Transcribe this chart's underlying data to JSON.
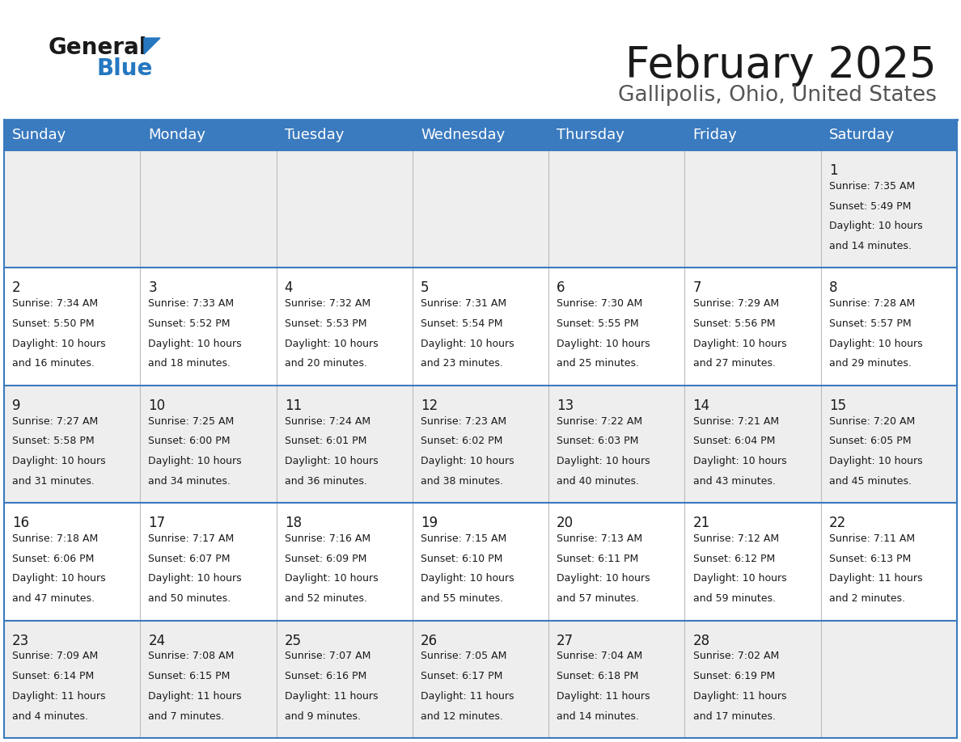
{
  "title": "February 2025",
  "subtitle": "Gallipolis, Ohio, United States",
  "header_bg": "#3a7abf",
  "header_text_color": "#ffffff",
  "cell_bg_week1": "#eeeeee",
  "cell_bg_week2": "#ffffff",
  "cell_bg_week3": "#eeeeee",
  "cell_bg_week4": "#ffffff",
  "cell_bg_week5": "#eeeeee",
  "border_color": "#3a7abf",
  "sep_color": "#bbbbbb",
  "day_headers": [
    "Sunday",
    "Monday",
    "Tuesday",
    "Wednesday",
    "Thursday",
    "Friday",
    "Saturday"
  ],
  "calendar_data": [
    [
      null,
      null,
      null,
      null,
      null,
      null,
      {
        "day": "1",
        "sunrise": "7:35 AM",
        "sunset": "5:49 PM",
        "daylight1": "Daylight: 10 hours",
        "daylight2": "and 14 minutes."
      }
    ],
    [
      {
        "day": "2",
        "sunrise": "7:34 AM",
        "sunset": "5:50 PM",
        "daylight1": "Daylight: 10 hours",
        "daylight2": "and 16 minutes."
      },
      {
        "day": "3",
        "sunrise": "7:33 AM",
        "sunset": "5:52 PM",
        "daylight1": "Daylight: 10 hours",
        "daylight2": "and 18 minutes."
      },
      {
        "day": "4",
        "sunrise": "7:32 AM",
        "sunset": "5:53 PM",
        "daylight1": "Daylight: 10 hours",
        "daylight2": "and 20 minutes."
      },
      {
        "day": "5",
        "sunrise": "7:31 AM",
        "sunset": "5:54 PM",
        "daylight1": "Daylight: 10 hours",
        "daylight2": "and 23 minutes."
      },
      {
        "day": "6",
        "sunrise": "7:30 AM",
        "sunset": "5:55 PM",
        "daylight1": "Daylight: 10 hours",
        "daylight2": "and 25 minutes."
      },
      {
        "day": "7",
        "sunrise": "7:29 AM",
        "sunset": "5:56 PM",
        "daylight1": "Daylight: 10 hours",
        "daylight2": "and 27 minutes."
      },
      {
        "day": "8",
        "sunrise": "7:28 AM",
        "sunset": "5:57 PM",
        "daylight1": "Daylight: 10 hours",
        "daylight2": "and 29 minutes."
      }
    ],
    [
      {
        "day": "9",
        "sunrise": "7:27 AM",
        "sunset": "5:58 PM",
        "daylight1": "Daylight: 10 hours",
        "daylight2": "and 31 minutes."
      },
      {
        "day": "10",
        "sunrise": "7:25 AM",
        "sunset": "6:00 PM",
        "daylight1": "Daylight: 10 hours",
        "daylight2": "and 34 minutes."
      },
      {
        "day": "11",
        "sunrise": "7:24 AM",
        "sunset": "6:01 PM",
        "daylight1": "Daylight: 10 hours",
        "daylight2": "and 36 minutes."
      },
      {
        "day": "12",
        "sunrise": "7:23 AM",
        "sunset": "6:02 PM",
        "daylight1": "Daylight: 10 hours",
        "daylight2": "and 38 minutes."
      },
      {
        "day": "13",
        "sunrise": "7:22 AM",
        "sunset": "6:03 PM",
        "daylight1": "Daylight: 10 hours",
        "daylight2": "and 40 minutes."
      },
      {
        "day": "14",
        "sunrise": "7:21 AM",
        "sunset": "6:04 PM",
        "daylight1": "Daylight: 10 hours",
        "daylight2": "and 43 minutes."
      },
      {
        "day": "15",
        "sunrise": "7:20 AM",
        "sunset": "6:05 PM",
        "daylight1": "Daylight: 10 hours",
        "daylight2": "and 45 minutes."
      }
    ],
    [
      {
        "day": "16",
        "sunrise": "7:18 AM",
        "sunset": "6:06 PM",
        "daylight1": "Daylight: 10 hours",
        "daylight2": "and 47 minutes."
      },
      {
        "day": "17",
        "sunrise": "7:17 AM",
        "sunset": "6:07 PM",
        "daylight1": "Daylight: 10 hours",
        "daylight2": "and 50 minutes."
      },
      {
        "day": "18",
        "sunrise": "7:16 AM",
        "sunset": "6:09 PM",
        "daylight1": "Daylight: 10 hours",
        "daylight2": "and 52 minutes."
      },
      {
        "day": "19",
        "sunrise": "7:15 AM",
        "sunset": "6:10 PM",
        "daylight1": "Daylight: 10 hours",
        "daylight2": "and 55 minutes."
      },
      {
        "day": "20",
        "sunrise": "7:13 AM",
        "sunset": "6:11 PM",
        "daylight1": "Daylight: 10 hours",
        "daylight2": "and 57 minutes."
      },
      {
        "day": "21",
        "sunrise": "7:12 AM",
        "sunset": "6:12 PM",
        "daylight1": "Daylight: 10 hours",
        "daylight2": "and 59 minutes."
      },
      {
        "day": "22",
        "sunrise": "7:11 AM",
        "sunset": "6:13 PM",
        "daylight1": "Daylight: 11 hours",
        "daylight2": "and 2 minutes."
      }
    ],
    [
      {
        "day": "23",
        "sunrise": "7:09 AM",
        "sunset": "6:14 PM",
        "daylight1": "Daylight: 11 hours",
        "daylight2": "and 4 minutes."
      },
      {
        "day": "24",
        "sunrise": "7:08 AM",
        "sunset": "6:15 PM",
        "daylight1": "Daylight: 11 hours",
        "daylight2": "and 7 minutes."
      },
      {
        "day": "25",
        "sunrise": "7:07 AM",
        "sunset": "6:16 PM",
        "daylight1": "Daylight: 11 hours",
        "daylight2": "and 9 minutes."
      },
      {
        "day": "26",
        "sunrise": "7:05 AM",
        "sunset": "6:17 PM",
        "daylight1": "Daylight: 11 hours",
        "daylight2": "and 12 minutes."
      },
      {
        "day": "27",
        "sunrise": "7:04 AM",
        "sunset": "6:18 PM",
        "daylight1": "Daylight: 11 hours",
        "daylight2": "and 14 minutes."
      },
      {
        "day": "28",
        "sunrise": "7:02 AM",
        "sunset": "6:19 PM",
        "daylight1": "Daylight: 11 hours",
        "daylight2": "and 17 minutes."
      },
      null
    ]
  ],
  "title_fontsize": 38,
  "subtitle_fontsize": 19,
  "header_fontsize": 13,
  "day_num_fontsize": 12,
  "cell_text_fontsize": 9.0,
  "logo_general_fontsize": 20,
  "logo_blue_fontsize": 20
}
